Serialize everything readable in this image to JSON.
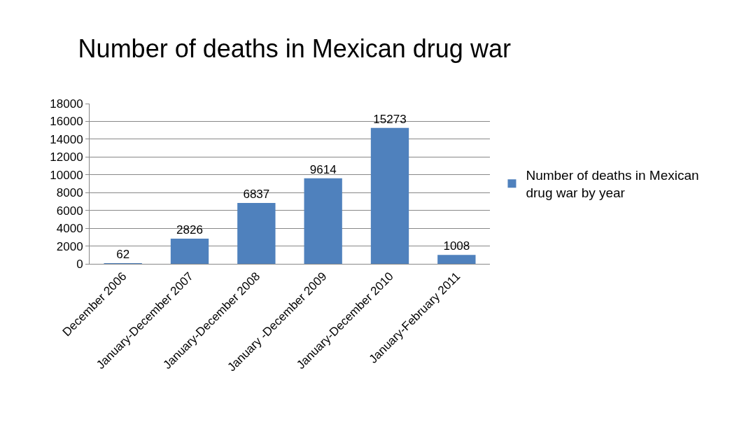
{
  "chart_data": {
    "type": "bar",
    "title": "Number of deaths in Mexican drug war",
    "categories": [
      "December 2006",
      "January-December 2007",
      "January-December 2008",
      "January -December 2009",
      "January-December 2010",
      "January-February 2011"
    ],
    "series": [
      {
        "name": "Number of deaths in Mexican drug war by year",
        "color": "#4f81bd",
        "values": [
          62,
          2826,
          6837,
          9614,
          15273,
          1008
        ]
      }
    ],
    "ylim": [
      0,
      18000
    ],
    "yticks": [
      0,
      2000,
      4000,
      6000,
      8000,
      10000,
      12000,
      14000,
      16000,
      18000
    ],
    "grid": "y",
    "legend": "right",
    "data_labels": true
  }
}
